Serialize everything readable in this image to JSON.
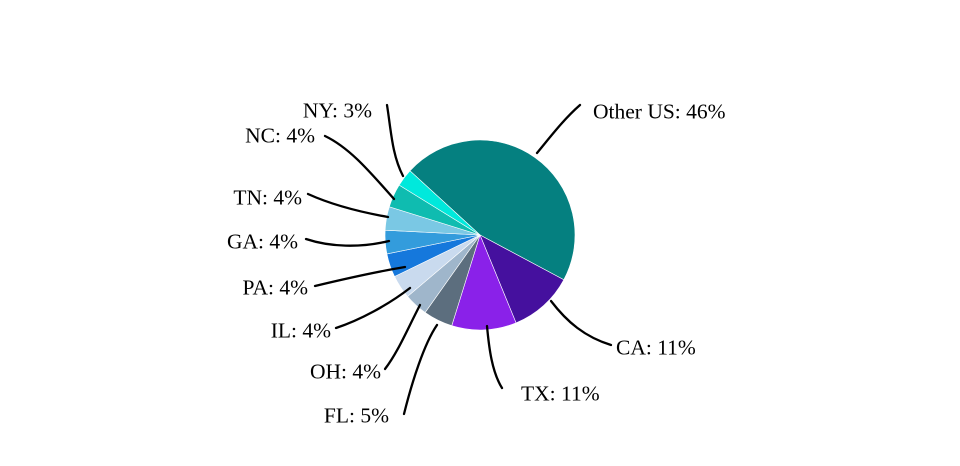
{
  "page": {
    "background_color": "#ffffff"
  },
  "chart_data": {
    "type": "pie",
    "title": "",
    "legend_position": "none (leader-line callout labels)",
    "direction": "clockwise",
    "start_angle_deg_cw_from_north": -47.5,
    "label_color": "#000000",
    "leader_line_color": "#000000",
    "categories": [
      "Other US",
      "CA",
      "TX",
      "FL",
      "OH",
      "IL",
      "PA",
      "GA",
      "TN",
      "NC",
      "NY"
    ],
    "values": [
      46,
      11,
      11,
      5,
      4,
      4,
      4,
      4,
      4,
      4,
      3
    ],
    "slices": [
      {
        "label": "Other US",
        "value": 46,
        "display": "Other US: 46%",
        "color": "#058080"
      },
      {
        "label": "CA",
        "value": 11,
        "display": "CA: 11%",
        "color": "#45109E"
      },
      {
        "label": "TX",
        "value": 11,
        "display": "TX: 11%",
        "color": "#8A21E9"
      },
      {
        "label": "FL",
        "value": 5,
        "display": "FL: 5%",
        "color": "#5C6E7E"
      },
      {
        "label": "OH",
        "value": 4,
        "display": "OH: 4%",
        "color": "#9FB6CB"
      },
      {
        "label": "IL",
        "value": 4,
        "display": "IL: 4%",
        "color": "#C9DAEE"
      },
      {
        "label": "PA",
        "value": 4,
        "display": "PA: 4%",
        "color": "#1578DC"
      },
      {
        "label": "GA",
        "value": 4,
        "display": "GA: 4%",
        "color": "#339CDC"
      },
      {
        "label": "TN",
        "value": 4,
        "display": "TN: 4%",
        "color": "#7AC8E4"
      },
      {
        "label": "NC",
        "value": 4,
        "display": "NC: 4%",
        "color": "#0FBCB0"
      },
      {
        "label": "NY",
        "value": 3,
        "display": "NY: 3%",
        "color": "#00E9DC"
      }
    ]
  }
}
